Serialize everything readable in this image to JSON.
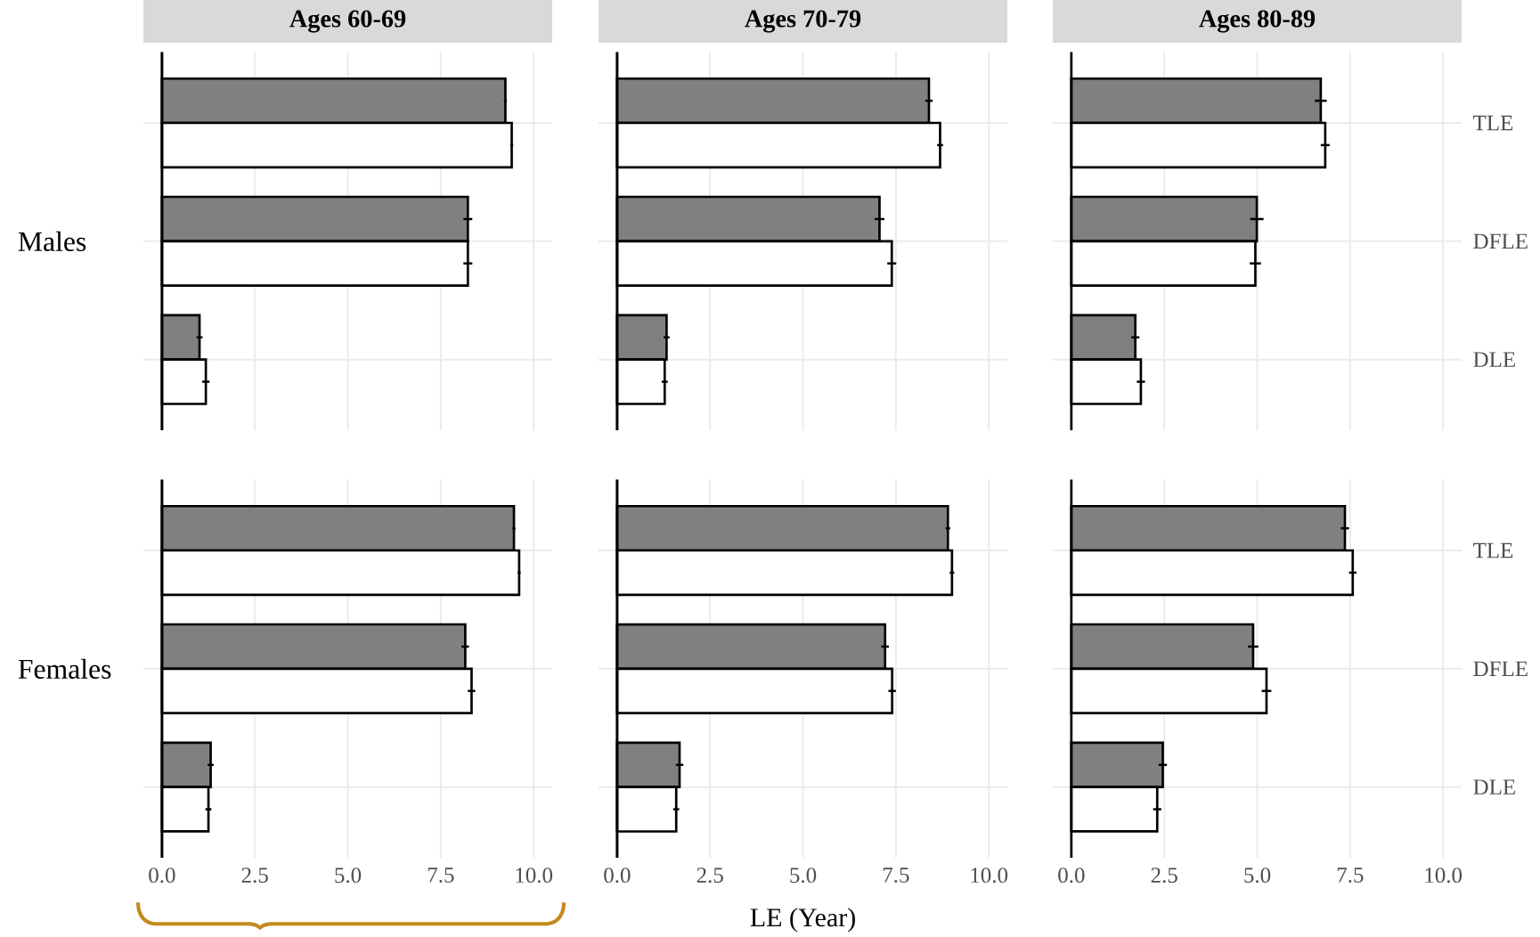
{
  "chart_data": [
    {
      "type": "bar",
      "orientation": "horizontal",
      "title": "Ages 60-69",
      "ylabel": "Males",
      "categories": [
        null,
        null,
        null
      ],
      "series": [
        {
          "color": "#808080",
          "values": [
            9.24,
            8.23,
            1.01
          ],
          "errors": [
            0.04,
            0.12,
            0.08
          ]
        },
        {
          "color": "#ffffff",
          "values": [
            9.41,
            8.23,
            1.18
          ],
          "errors": [
            0.04,
            0.12,
            0.1
          ]
        }
      ],
      "xlim": [
        -0.5,
        10.5
      ],
      "xticks": [
        {
          "value": 0,
          "label": null
        },
        {
          "value": 2.5,
          "label": null
        },
        {
          "value": 5,
          "label": null
        },
        {
          "value": 7.5,
          "label": null
        },
        {
          "value": 10,
          "label": null
        }
      ],
      "grid": true,
      "ref_lines": [
        {
          "axis": "x",
          "value": 0,
          "color": "#000000"
        }
      ],
      "tick_labels": false
    },
    {
      "type": "bar",
      "orientation": "horizontal",
      "title": "Ages 70-79",
      "categories": [
        null,
        null,
        null
      ],
      "series": [
        {
          "color": "#808080",
          "values": [
            8.39,
            7.06,
            1.33
          ],
          "errors": [
            0.1,
            0.13,
            0.08
          ]
        },
        {
          "color": "#ffffff",
          "values": [
            8.69,
            7.39,
            1.28
          ],
          "errors": [
            0.08,
            0.12,
            0.08
          ]
        }
      ],
      "xlim": [
        -0.5,
        10.5
      ],
      "xticks": [
        {
          "value": 0,
          "label": null
        },
        {
          "value": 2.5,
          "label": null
        },
        {
          "value": 5,
          "label": null
        },
        {
          "value": 7.5,
          "label": null
        },
        {
          "value": 10,
          "label": null
        }
      ],
      "grid": true,
      "ref_lines": [
        {
          "axis": "x",
          "value": 0,
          "color": "#000000"
        }
      ],
      "tick_labels": false
    },
    {
      "type": "bar",
      "orientation": "horizontal",
      "title": "Ages 80-89",
      "categories": [
        "TLE",
        "DFLE",
        "DLE"
      ],
      "series": [
        {
          "color": "#808080",
          "values": [
            6.71,
            4.99,
            1.72
          ],
          "errors": [
            0.16,
            0.18,
            0.11
          ]
        },
        {
          "color": "#ffffff",
          "values": [
            6.83,
            4.95,
            1.87
          ],
          "errors": [
            0.12,
            0.15,
            0.11
          ]
        }
      ],
      "xlim": [
        -0.5,
        10.5
      ],
      "xticks": [
        {
          "value": 0,
          "label": null
        },
        {
          "value": 2.5,
          "label": null
        },
        {
          "value": 5,
          "label": null
        },
        {
          "value": 7.5,
          "label": null
        },
        {
          "value": 10,
          "label": null
        }
      ],
      "grid": true,
      "ref_lines": [
        {
          "axis": "x",
          "value": 0,
          "color": "#000000"
        }
      ],
      "tick_labels": "y"
    },
    {
      "type": "bar",
      "orientation": "horizontal",
      "ylabel": "Females",
      "categories": [
        null,
        null,
        null
      ],
      "series": [
        {
          "color": "#808080",
          "values": [
            9.47,
            8.16,
            1.31
          ],
          "errors": [
            0.04,
            0.1,
            0.08
          ]
        },
        {
          "color": "#ffffff",
          "values": [
            9.61,
            8.33,
            1.25
          ],
          "errors": [
            0.04,
            0.1,
            0.08
          ]
        }
      ],
      "xlim": [
        -0.5,
        10.5
      ],
      "xticks": [
        {
          "value": 0,
          "label": "0.0"
        },
        {
          "value": 2.5,
          "label": "2.5"
        },
        {
          "value": 5,
          "label": "5.0"
        },
        {
          "value": 7.5,
          "label": "7.5"
        },
        {
          "value": 10,
          "label": "10.0"
        }
      ],
      "grid": true,
      "ref_lines": [
        {
          "axis": "x",
          "value": 0,
          "color": "#000000"
        }
      ],
      "tick_labels": "x"
    },
    {
      "type": "bar",
      "orientation": "horizontal",
      "xlabel": "LE (Year)",
      "categories": [
        null,
        null,
        null
      ],
      "series": [
        {
          "color": "#808080",
          "values": [
            8.9,
            7.21,
            1.68
          ],
          "errors": [
            0.06,
            0.1,
            0.1
          ]
        },
        {
          "color": "#ffffff",
          "values": [
            9.01,
            7.4,
            1.59
          ],
          "errors": [
            0.06,
            0.1,
            0.08
          ]
        }
      ],
      "xlim": [
        -0.5,
        10.5
      ],
      "xticks": [
        {
          "value": 0,
          "label": "0.0"
        },
        {
          "value": 2.5,
          "label": "2.5"
        },
        {
          "value": 5,
          "label": "5.0"
        },
        {
          "value": 7.5,
          "label": "7.5"
        },
        {
          "value": 10,
          "label": "10.0"
        }
      ],
      "grid": true,
      "ref_lines": [
        {
          "axis": "x",
          "value": 0,
          "color": "#000000"
        }
      ],
      "tick_labels": "x"
    },
    {
      "type": "bar",
      "orientation": "horizontal",
      "categories": [
        "TLE",
        "DFLE",
        "DLE"
      ],
      "series": [
        {
          "color": "#808080",
          "values": [
            7.36,
            4.89,
            2.46
          ],
          "errors": [
            0.11,
            0.14,
            0.11
          ]
        },
        {
          "color": "#ffffff",
          "values": [
            7.57,
            5.25,
            2.31
          ],
          "errors": [
            0.1,
            0.13,
            0.11
          ]
        }
      ],
      "xlim": [
        -0.5,
        10.5
      ],
      "xticks": [
        {
          "value": 0,
          "label": "0.0"
        },
        {
          "value": 2.5,
          "label": "2.5"
        },
        {
          "value": 5,
          "label": "5.0"
        },
        {
          "value": 7.5,
          "label": "7.5"
        },
        {
          "value": 10,
          "label": "10.0"
        }
      ],
      "grid": true,
      "ref_lines": [
        {
          "axis": "x",
          "value": 0,
          "color": "#000000"
        }
      ]
    }
  ]
}
